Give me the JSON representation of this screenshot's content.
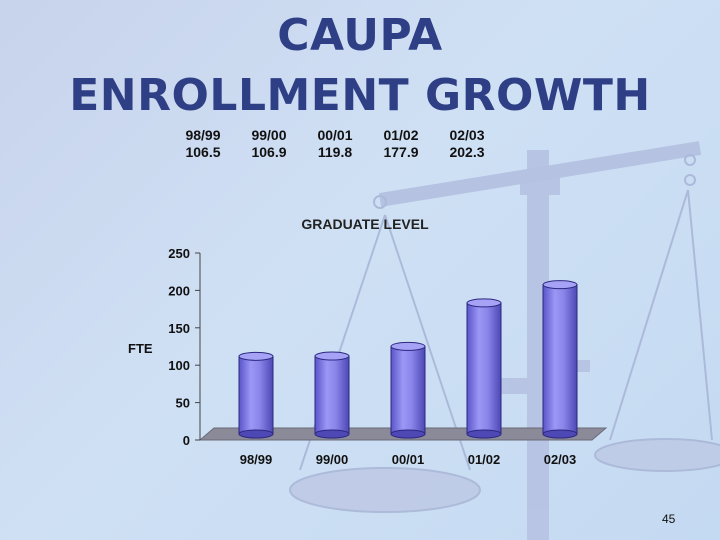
{
  "slide": {
    "title_line1": "CAUPA",
    "title_line2": "ENROLLMENT GROWTH",
    "page_number": "45"
  },
  "table": {
    "headers": [
      "98/99",
      "99/00",
      "00/01",
      "01/02",
      "02/03"
    ],
    "values": [
      "106.5",
      "106.9",
      "119.8",
      "177.9",
      "202.3"
    ]
  },
  "chart_data": {
    "type": "bar",
    "title": "GRADUATE LEVEL",
    "ylabel": "FTE",
    "xlabel": "",
    "categories": [
      "98/99",
      "99/00",
      "00/01",
      "01/02",
      "02/03"
    ],
    "values": [
      106.5,
      106.9,
      119.8,
      177.9,
      202.3
    ],
    "ylim": [
      0,
      250
    ],
    "yticks": [
      0,
      50,
      100,
      150,
      200,
      250
    ],
    "grid": false,
    "legend": "none",
    "bar_color": "#8a86ea",
    "floor_color": "#8a8a98"
  },
  "colors": {
    "title": "#2f3f86",
    "background": "#cfe0f4"
  }
}
